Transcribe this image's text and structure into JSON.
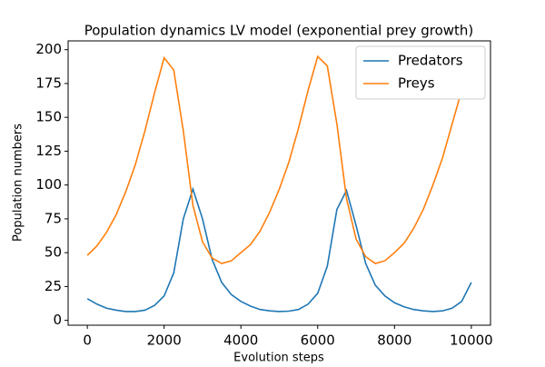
{
  "chart_data": {
    "type": "line",
    "title": "Population dynamics LV model (exponential prey growth)",
    "x_label": "Evolution steps",
    "y_label": "Population numbers",
    "x": [
      0,
      250,
      500,
      750,
      1000,
      1250,
      1500,
      1750,
      2000,
      2250,
      2500,
      2750,
      3000,
      3250,
      3500,
      3750,
      4000,
      4250,
      4500,
      4750,
      5000,
      5250,
      5500,
      5750,
      6000,
      6250,
      6500,
      6750,
      7000,
      7250,
      7500,
      7750,
      8000,
      8250,
      8500,
      8750,
      9000,
      9250,
      9500,
      9750,
      10000
    ],
    "series": [
      {
        "name": "Predators",
        "color": "#1f77b4",
        "values": [
          16,
          12,
          9,
          7.5,
          6.5,
          6.5,
          7.5,
          11,
          18,
          35,
          75,
          97,
          75,
          45,
          28,
          19,
          14,
          10.5,
          8,
          7,
          6.5,
          6.8,
          8,
          12,
          20,
          40,
          82,
          96,
          70,
          42,
          26,
          18,
          13,
          10,
          8,
          7,
          6.5,
          7,
          9,
          14,
          28
        ]
      },
      {
        "name": "Preys",
        "color": "#ff7f0e",
        "values": [
          48,
          55,
          65,
          78,
          95,
          115,
          140,
          168,
          194,
          185,
          140,
          85,
          58,
          46,
          42,
          44,
          50,
          56,
          66,
          80,
          97,
          117,
          142,
          170,
          195,
          188,
          145,
          90,
          60,
          47,
          42,
          44,
          50,
          57,
          68,
          82,
          100,
          120,
          145,
          170,
          192
        ]
      }
    ],
    "xlim": [
      -500,
      10500
    ],
    "xticks": [
      0,
      2000,
      4000,
      6000,
      8000,
      10000
    ],
    "ylim": [
      -3.6,
      206.5
    ],
    "yticks": [
      0,
      25,
      50,
      75,
      100,
      125,
      150,
      175,
      200
    ],
    "grid": false,
    "legend": "upper-right"
  }
}
